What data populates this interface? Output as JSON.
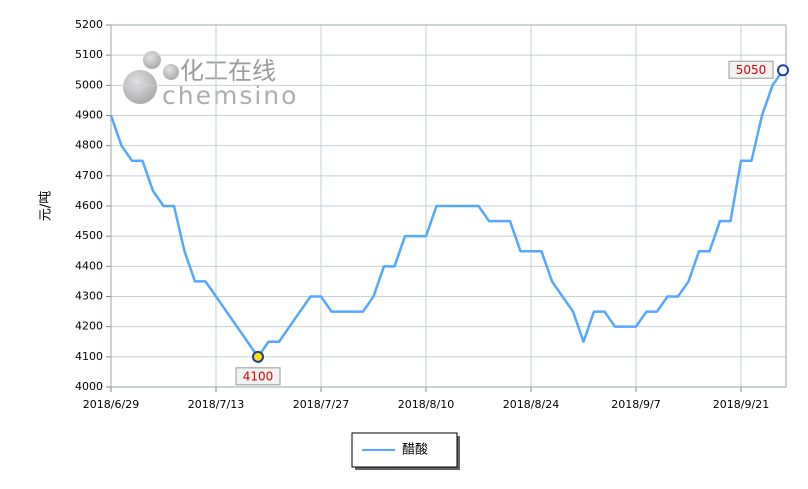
{
  "chart_data": {
    "type": "line",
    "watermark": [
      "化工在线",
      "chemsino"
    ],
    "y_label": "元/吨",
    "categories": [
      "2018/6/29",
      null,
      null,
      null,
      null,
      null,
      null,
      null,
      null,
      null,
      "2018/7/13",
      null,
      null,
      null,
      null,
      null,
      null,
      null,
      null,
      null,
      "2018/7/27",
      null,
      null,
      null,
      null,
      null,
      null,
      null,
      null,
      null,
      "2018/8/10",
      null,
      null,
      null,
      null,
      null,
      null,
      null,
      null,
      null,
      "2018/8/24",
      null,
      null,
      null,
      null,
      null,
      null,
      null,
      null,
      null,
      "2018/9/7",
      null,
      null,
      null,
      null,
      null,
      null,
      null,
      null,
      null,
      "2018/9/21",
      null,
      null,
      null,
      null
    ],
    "series": [
      {
        "name": "醋酸",
        "color": "#55a8ff",
        "values": [
          4900,
          4800,
          4750,
          4750,
          4650,
          4600,
          4600,
          4450,
          4350,
          4350,
          4300,
          4250,
          4200,
          4150,
          4100,
          4150,
          4150,
          4200,
          4250,
          4300,
          4300,
          4250,
          4250,
          4250,
          4250,
          4300,
          4400,
          4400,
          4500,
          4500,
          4500,
          4600,
          4600,
          4600,
          4600,
          4600,
          4550,
          4550,
          4550,
          4450,
          4450,
          4450,
          4350,
          4300,
          4250,
          4150,
          4250,
          4250,
          4200,
          4200,
          4200,
          4250,
          4250,
          4300,
          4300,
          4350,
          4450,
          4450,
          4550,
          4550,
          4750,
          4750,
          4900,
          5000,
          5050
        ]
      }
    ],
    "ylim": [
      4000,
      5200
    ],
    "yticks": [
      4000,
      4100,
      4200,
      4300,
      4400,
      4500,
      4600,
      4700,
      4800,
      4900,
      5000,
      5100,
      5200
    ],
    "grid": true
  }
}
